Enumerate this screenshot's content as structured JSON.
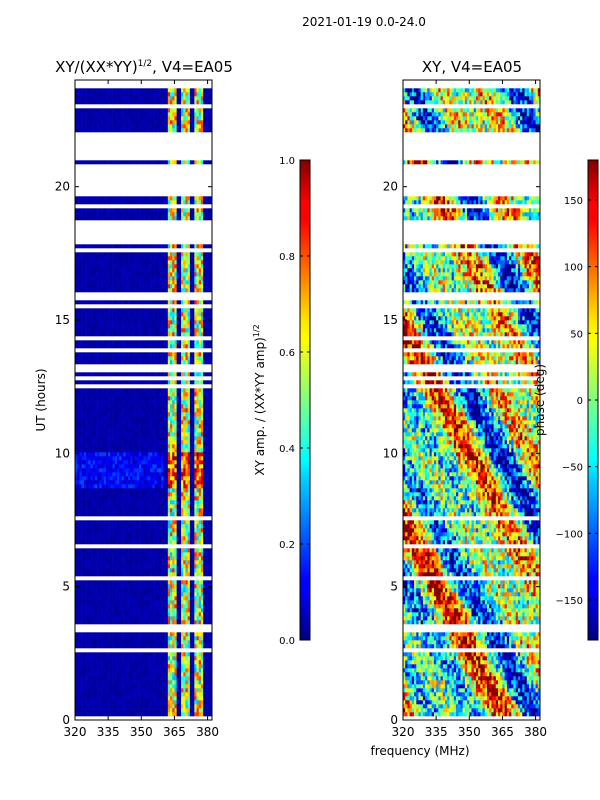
{
  "figure_title": "2021-01-19 0.0-24.0",
  "chart_data": [
    {
      "type": "heatmap",
      "title_main": "XY/(XX*YY)",
      "title_sup": "1/2",
      "title_suffix": ", V4=EA05",
      "xlabel": "",
      "ylabel": "UT (hours)",
      "xlim": [
        320,
        382
      ],
      "ylim": [
        0,
        24
      ],
      "xticks": [
        320,
        335,
        350,
        365,
        380
      ],
      "yticks": [
        0,
        5,
        10,
        15,
        20
      ],
      "colorbar": {
        "label": "XY amp. / (XX*YY amp)",
        "label_sup": "1/2",
        "range": [
          0.0,
          1.0
        ],
        "ticks": [
          0.0,
          0.2,
          0.4,
          0.6,
          0.8,
          1.0
        ],
        "tick_labels": [
          "0.0",
          "0.2",
          "0.4",
          "0.6",
          "0.8",
          "1.0"
        ],
        "colormap": "jet"
      },
      "data_gaps_hours": [
        [
          21.0,
          22.1
        ],
        [
          19.6,
          20.8
        ],
        [
          17.8,
          18.6
        ],
        [
          3.3,
          3.5
        ]
      ],
      "bright_channels_mhz": [
        [
          362,
          366
        ],
        [
          368,
          372
        ],
        [
          374,
          378
        ]
      ],
      "flare_hours": [
        [
          8.7,
          10.0
        ]
      ]
    },
    {
      "type": "heatmap",
      "title_main": "XY, V4=EA05",
      "xlabel": "frequency (MHz)",
      "ylabel": "",
      "xlim": [
        320,
        382
      ],
      "ylim": [
        0,
        24
      ],
      "xticks": [
        320,
        335,
        350,
        365,
        380
      ],
      "yticks": [
        0,
        5,
        10,
        15,
        20
      ],
      "colorbar": {
        "label": "phase (deg)",
        "range": [
          -180,
          180
        ],
        "ticks": [
          150,
          100,
          50,
          0,
          -50,
          -100,
          -150
        ],
        "tick_labels": [
          "150",
          "100",
          "50",
          "0",
          "−50",
          "−100",
          "−150"
        ],
        "colormap": "jet"
      },
      "data_gaps_hours": [
        [
          21.0,
          22.1
        ],
        [
          19.6,
          20.8
        ],
        [
          17.8,
          18.6
        ],
        [
          3.3,
          3.5
        ]
      ]
    }
  ]
}
